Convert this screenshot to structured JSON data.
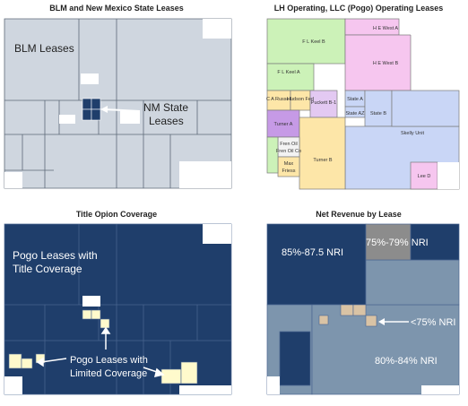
{
  "panels": {
    "blm": {
      "title": "BLM and New Mexico State Leases",
      "labels": {
        "blm": "BLM Leases",
        "nm_line1": "NM State",
        "nm_line2": "Leases"
      }
    },
    "lh": {
      "title": "LH Operating, LLC (Pogo) Operating Leases",
      "leases": {
        "fl_keel_b": "F L Keel B",
        "fl_keel_a": "F L Keel A",
        "he_west_a": "H E West A",
        "he_west_b": "H E West B",
        "ca_russell": "C A Russell",
        "hudson_fed": "Hudson Fed",
        "puckett": "Puckett B-1",
        "state_a": "State A",
        "state_az": "State AZ",
        "turner_a": "Turner A",
        "state_b": "State B",
        "skelly_unit": "Skelly Unit",
        "fren_oil_1": "Fren Oil",
        "fren_oil_2": "Fren Oil Co",
        "max_friess_1": "Max",
        "max_friess_2": "Friess",
        "turner_b": "Turner B",
        "lee_d": "Lee D"
      }
    },
    "title": {
      "title": "Title Opion Coverage",
      "labels": {
        "full_1": "Pogo Leases with",
        "full_2": "Title Coverage",
        "limited_1": "Pogo Leases with",
        "limited_2": "Limited Coverage"
      }
    },
    "nri": {
      "title": "Net Revenue by Lease",
      "labels": {
        "high": "85%-87.5 NRI",
        "mid": "75%-79% NRI",
        "low": "<75% NRI",
        "mid2": "80%-84% NRI"
      }
    }
  },
  "colors": {
    "gray": "#cfd6df",
    "navy": "#1f3e6b",
    "cream": "#fffacc",
    "steel": "#7d95ad",
    "tan": "#d9c3a5",
    "darkgray": "#8c8c8c"
  }
}
